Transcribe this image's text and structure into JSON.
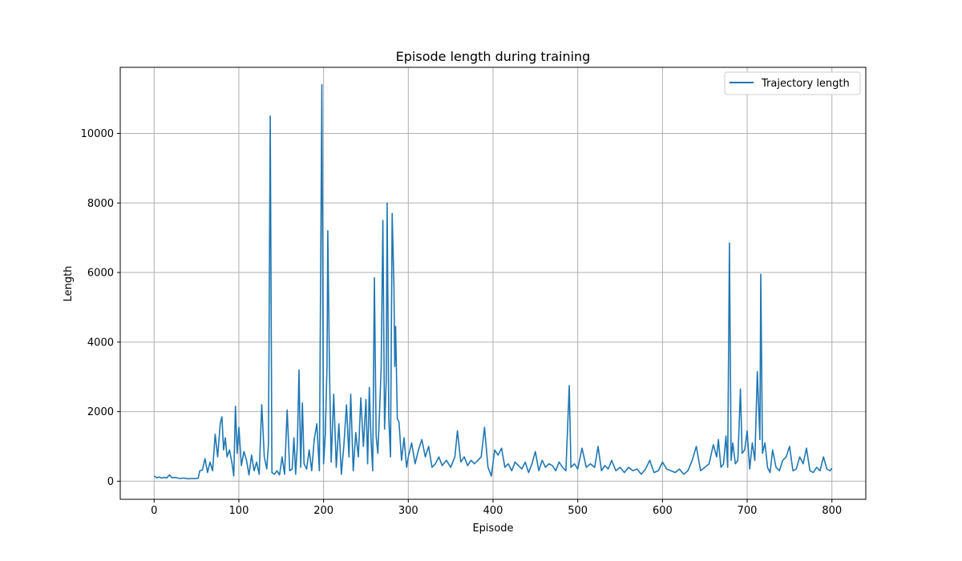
{
  "chart_data": {
    "type": "line",
    "title": "Episode length during training",
    "xlabel": "Episode",
    "ylabel": "Length",
    "xlim": [
      -40,
      840
    ],
    "ylim": [
      -520,
      11900
    ],
    "xticks": [
      0,
      100,
      200,
      300,
      400,
      500,
      600,
      700,
      800
    ],
    "yticks": [
      0,
      2000,
      4000,
      6000,
      8000,
      10000
    ],
    "grid": true,
    "legend_position": "top-right",
    "series": [
      {
        "name": "Trajectory length",
        "color": "#1f77b4",
        "points": [
          [
            0,
            150
          ],
          [
            3,
            100
          ],
          [
            6,
            120
          ],
          [
            9,
            90
          ],
          [
            12,
            110
          ],
          [
            15,
            95
          ],
          [
            18,
            180
          ],
          [
            21,
            100
          ],
          [
            25,
            110
          ],
          [
            30,
            80
          ],
          [
            35,
            90
          ],
          [
            40,
            70
          ],
          [
            45,
            80
          ],
          [
            50,
            75
          ],
          [
            52,
            90
          ],
          [
            54,
            300
          ],
          [
            57,
            320
          ],
          [
            60,
            650
          ],
          [
            63,
            250
          ],
          [
            66,
            550
          ],
          [
            69,
            300
          ],
          [
            72,
            1350
          ],
          [
            75,
            700
          ],
          [
            78,
            1650
          ],
          [
            80,
            1850
          ],
          [
            82,
            900
          ],
          [
            84,
            1250
          ],
          [
            86,
            700
          ],
          [
            89,
            900
          ],
          [
            92,
            500
          ],
          [
            94,
            150
          ],
          [
            96,
            2150
          ],
          [
            98,
            800
          ],
          [
            100,
            1550
          ],
          [
            103,
            450
          ],
          [
            106,
            850
          ],
          [
            109,
            600
          ],
          [
            112,
            180
          ],
          [
            115,
            750
          ],
          [
            118,
            300
          ],
          [
            121,
            550
          ],
          [
            124,
            200
          ],
          [
            127,
            2200
          ],
          [
            130,
            700
          ],
          [
            133,
            350
          ],
          [
            135,
            1100
          ],
          [
            137,
            10500
          ],
          [
            139,
            250
          ],
          [
            142,
            200
          ],
          [
            145,
            300
          ],
          [
            148,
            180
          ],
          [
            151,
            700
          ],
          [
            154,
            200
          ],
          [
            157,
            2050
          ],
          [
            160,
            300
          ],
          [
            163,
            350
          ],
          [
            165,
            1250
          ],
          [
            167,
            200
          ],
          [
            169,
            1050
          ],
          [
            171,
            3200
          ],
          [
            173,
            400
          ],
          [
            175,
            2250
          ],
          [
            177,
            500
          ],
          [
            180,
            350
          ],
          [
            183,
            900
          ],
          [
            186,
            300
          ],
          [
            189,
            1200
          ],
          [
            192,
            1650
          ],
          [
            195,
            300
          ],
          [
            198,
            11400
          ],
          [
            200,
            500
          ],
          [
            202,
            1350
          ],
          [
            204,
            3300
          ],
          [
            205,
            7200
          ],
          [
            207,
            3200
          ],
          [
            209,
            550
          ],
          [
            212,
            2500
          ],
          [
            215,
            400
          ],
          [
            218,
            1650
          ],
          [
            221,
            200
          ],
          [
            224,
            1050
          ],
          [
            227,
            2200
          ],
          [
            230,
            700
          ],
          [
            232,
            2500
          ],
          [
            235,
            300
          ],
          [
            238,
            1400
          ],
          [
            241,
            700
          ],
          [
            244,
            2400
          ],
          [
            247,
            1000
          ],
          [
            250,
            2350
          ],
          [
            252,
            500
          ],
          [
            254,
            2700
          ],
          [
            256,
            1200
          ],
          [
            258,
            300
          ],
          [
            260,
            5850
          ],
          [
            262,
            1300
          ],
          [
            264,
            800
          ],
          [
            266,
            1950
          ],
          [
            268,
            3300
          ],
          [
            270,
            7500
          ],
          [
            272,
            1500
          ],
          [
            274,
            2900
          ],
          [
            275,
            8000
          ],
          [
            277,
            1800
          ],
          [
            279,
            700
          ],
          [
            281,
            7700
          ],
          [
            283,
            5600
          ],
          [
            284,
            3300
          ],
          [
            285,
            4450
          ],
          [
            287,
            1800
          ],
          [
            289,
            1700
          ],
          [
            292,
            600
          ],
          [
            295,
            1250
          ],
          [
            298,
            400
          ],
          [
            300,
            700
          ],
          [
            304,
            1100
          ],
          [
            308,
            500
          ],
          [
            312,
            900
          ],
          [
            316,
            1200
          ],
          [
            320,
            700
          ],
          [
            324,
            1000
          ],
          [
            328,
            400
          ],
          [
            332,
            500
          ],
          [
            336,
            700
          ],
          [
            340,
            450
          ],
          [
            345,
            600
          ],
          [
            350,
            400
          ],
          [
            355,
            700
          ],
          [
            358,
            1450
          ],
          [
            362,
            550
          ],
          [
            366,
            700
          ],
          [
            370,
            450
          ],
          [
            374,
            600
          ],
          [
            378,
            500
          ],
          [
            382,
            600
          ],
          [
            386,
            700
          ],
          [
            390,
            1550
          ],
          [
            394,
            400
          ],
          [
            398,
            150
          ],
          [
            402,
            900
          ],
          [
            406,
            750
          ],
          [
            410,
            950
          ],
          [
            414,
            400
          ],
          [
            418,
            500
          ],
          [
            422,
            300
          ],
          [
            426,
            550
          ],
          [
            430,
            450
          ],
          [
            434,
            350
          ],
          [
            438,
            550
          ],
          [
            442,
            250
          ],
          [
            446,
            500
          ],
          [
            450,
            850
          ],
          [
            454,
            300
          ],
          [
            458,
            600
          ],
          [
            462,
            400
          ],
          [
            466,
            500
          ],
          [
            470,
            450
          ],
          [
            474,
            300
          ],
          [
            478,
            550
          ],
          [
            482,
            400
          ],
          [
            486,
            300
          ],
          [
            490,
            2750
          ],
          [
            492,
            400
          ],
          [
            496,
            500
          ],
          [
            500,
            350
          ],
          [
            505,
            950
          ],
          [
            510,
            400
          ],
          [
            515,
            500
          ],
          [
            520,
            400
          ],
          [
            524,
            1000
          ],
          [
            528,
            300
          ],
          [
            532,
            450
          ],
          [
            536,
            350
          ],
          [
            540,
            600
          ],
          [
            545,
            300
          ],
          [
            550,
            400
          ],
          [
            555,
            250
          ],
          [
            560,
            400
          ],
          [
            565,
            300
          ],
          [
            570,
            350
          ],
          [
            575,
            200
          ],
          [
            580,
            350
          ],
          [
            585,
            600
          ],
          [
            590,
            250
          ],
          [
            595,
            300
          ],
          [
            600,
            550
          ],
          [
            605,
            350
          ],
          [
            610,
            300
          ],
          [
            615,
            250
          ],
          [
            620,
            350
          ],
          [
            625,
            200
          ],
          [
            630,
            300
          ],
          [
            635,
            600
          ],
          [
            640,
            1000
          ],
          [
            645,
            300
          ],
          [
            650,
            400
          ],
          [
            655,
            500
          ],
          [
            660,
            1050
          ],
          [
            664,
            700
          ],
          [
            666,
            1200
          ],
          [
            669,
            400
          ],
          [
            672,
            500
          ],
          [
            675,
            1300
          ],
          [
            677,
            400
          ],
          [
            679,
            6850
          ],
          [
            681,
            600
          ],
          [
            683,
            1100
          ],
          [
            686,
            500
          ],
          [
            689,
            600
          ],
          [
            692,
            2650
          ],
          [
            694,
            800
          ],
          [
            697,
            900
          ],
          [
            700,
            1450
          ],
          [
            703,
            350
          ],
          [
            706,
            1100
          ],
          [
            709,
            600
          ],
          [
            712,
            3150
          ],
          [
            715,
            1200
          ],
          [
            716,
            5950
          ],
          [
            718,
            800
          ],
          [
            721,
            1100
          ],
          [
            724,
            400
          ],
          [
            727,
            250
          ],
          [
            730,
            900
          ],
          [
            734,
            400
          ],
          [
            738,
            300
          ],
          [
            742,
            600
          ],
          [
            746,
            700
          ],
          [
            750,
            1000
          ],
          [
            754,
            300
          ],
          [
            758,
            350
          ],
          [
            762,
            700
          ],
          [
            766,
            500
          ],
          [
            770,
            950
          ],
          [
            774,
            300
          ],
          [
            778,
            250
          ],
          [
            782,
            400
          ],
          [
            786,
            300
          ],
          [
            790,
            700
          ],
          [
            794,
            350
          ],
          [
            798,
            300
          ],
          [
            800,
            380
          ]
        ]
      }
    ]
  }
}
